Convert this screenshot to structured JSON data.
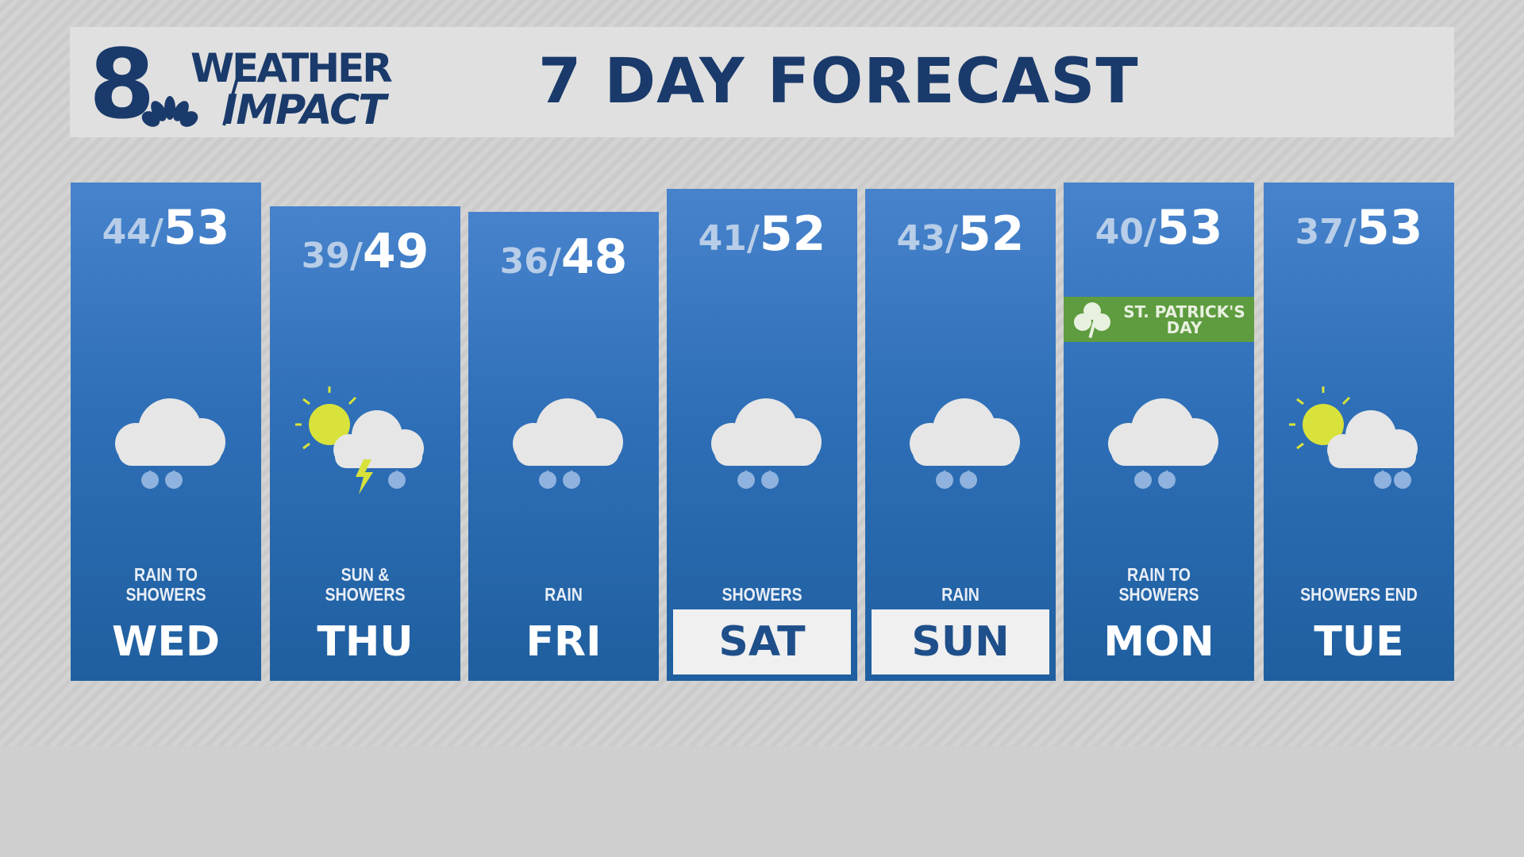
{
  "header": {
    "logo_text": "8 WEATHER IMPACT",
    "title": "7 DAY FORECAST"
  },
  "days": [
    {
      "day": "WED",
      "low": "44",
      "high": "53",
      "condition": "RAIN TO SHOWERS",
      "icon": "cloud-rain-icon",
      "highlight": false
    },
    {
      "day": "THU",
      "low": "39",
      "high": "49",
      "condition": "SUN & SHOWERS",
      "icon": "sun-cloud-thunder-icon",
      "highlight": false
    },
    {
      "day": "FRI",
      "low": "36",
      "high": "48",
      "condition": "RAIN",
      "icon": "cloud-rain-icon",
      "highlight": false
    },
    {
      "day": "SAT",
      "low": "41",
      "high": "52",
      "condition": "SHOWERS",
      "icon": "cloud-rain-icon",
      "highlight": true
    },
    {
      "day": "SUN",
      "low": "43",
      "high": "52",
      "condition": "RAIN",
      "icon": "cloud-rain-icon",
      "highlight": true
    },
    {
      "day": "MON",
      "low": "40",
      "high": "53",
      "condition": "RAIN TO SHOWERS",
      "icon": "cloud-rain-icon",
      "highlight": false,
      "banner": "ST. PATRICK'S DAY"
    },
    {
      "day": "TUE",
      "low": "37",
      "high": "53",
      "condition": "SHOWERS END",
      "icon": "sun-cloud-rain-icon",
      "highlight": false
    }
  ],
  "colors": {
    "navy": "#1a3a6b",
    "column_blue": "#2e6fb8",
    "banner_green": "#5e9c3f"
  }
}
